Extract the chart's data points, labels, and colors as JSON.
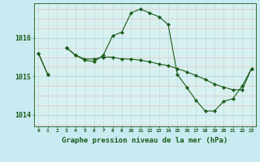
{
  "title": "Graphe pression niveau de la mer (hPa)",
  "background_color": "#c8eaf0",
  "plot_bg_color": "#d8f0f0",
  "line_color": "#1a5c1a",
  "grid_white": "#b8dce0",
  "grid_red": "#e8b8b8",
  "hours": [
    0,
    1,
    2,
    3,
    4,
    5,
    6,
    7,
    8,
    9,
    10,
    11,
    12,
    13,
    14,
    15,
    16,
    17,
    18,
    19,
    20,
    21,
    22,
    23
  ],
  "series1": [
    1015.6,
    1015.05,
    null,
    1015.75,
    1015.55,
    1015.45,
    1015.45,
    1015.5,
    1015.5,
    1015.45,
    1015.45,
    1015.42,
    1015.38,
    1015.32,
    1015.28,
    1015.2,
    1015.12,
    1015.02,
    1014.92,
    1014.8,
    1014.72,
    1014.65,
    1014.65,
    1015.2
  ],
  "series2": [
    1015.6,
    1015.05,
    null,
    1015.75,
    1015.55,
    1015.42,
    1015.38,
    1015.55,
    1016.05,
    1016.15,
    1016.65,
    1016.75,
    1016.65,
    1016.55,
    1016.35,
    1015.05,
    1014.72,
    1014.38,
    1014.1,
    1014.1,
    1014.35,
    1014.42,
    1014.75,
    1015.2
  ],
  "ylim": [
    1013.7,
    1016.9
  ],
  "yticks": [
    1014,
    1015,
    1016
  ],
  "ytick_labels": [
    "1014",
    "1015",
    "1016"
  ]
}
